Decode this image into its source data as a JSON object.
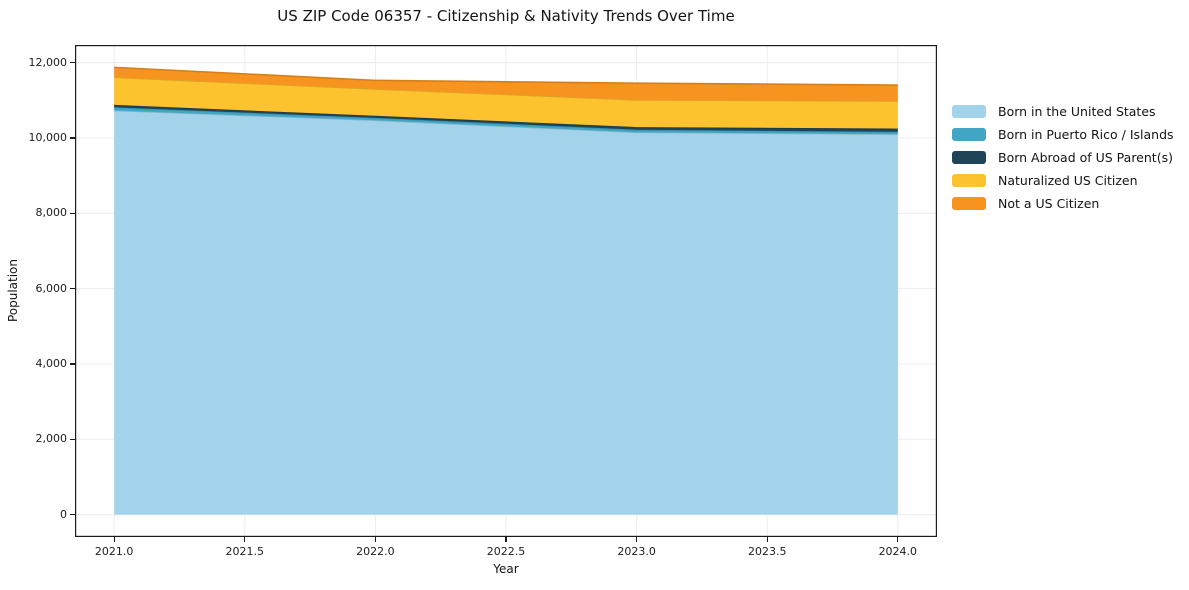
{
  "figure": {
    "background": "#ffffff",
    "spine_color": "#1c1c1c",
    "grid_color": "#ececec",
    "text_color": "#141414"
  },
  "chart_data": {
    "type": "area",
    "stacked": true,
    "title": "US ZIP Code 06357 - Citizenship & Nativity Trends Over Time",
    "xlabel": "Year",
    "ylabel": "Population",
    "x": [
      2021,
      2022,
      2023,
      2024
    ],
    "series": [
      {
        "name": "Born in the United States",
        "color": "#a3d3ea",
        "values": [
          10730,
          10470,
          10150,
          10100
        ]
      },
      {
        "name": "Born in Puerto Rico / Islands",
        "color": "#41a6c4",
        "values": [
          85,
          65,
          70,
          65
        ]
      },
      {
        "name": "Born Abroad of US Parent(s)",
        "color": "#1f4457",
        "values": [
          65,
          55,
          70,
          85
        ]
      },
      {
        "name": "Naturalized US Citizen",
        "color": "#fdc32e",
        "values": [
          730,
          710,
          720,
          730
        ]
      },
      {
        "name": "Not a US Citizen",
        "color": "#f6941f",
        "values": [
          265,
          230,
          445,
          425
        ]
      }
    ],
    "xlim": [
      2020.85,
      2024.15
    ],
    "ylim": [
      -594,
      12469
    ],
    "x_ticks": {
      "values": [
        2021,
        2021.5,
        2022,
        2022.5,
        2023,
        2023.5,
        2024
      ],
      "labels": [
        "2021.0",
        "2021.5",
        "2022.0",
        "2022.5",
        "2023.0",
        "2023.5",
        "2024.0"
      ]
    },
    "y_ticks": {
      "values": [
        0,
        2000,
        4000,
        6000,
        8000,
        10000,
        12000
      ],
      "labels": [
        "0",
        "2,000",
        "4,000",
        "6,000",
        "8,000",
        "10,000",
        "12,000"
      ]
    },
    "grid": true,
    "legend_position": "right of plot, top"
  }
}
